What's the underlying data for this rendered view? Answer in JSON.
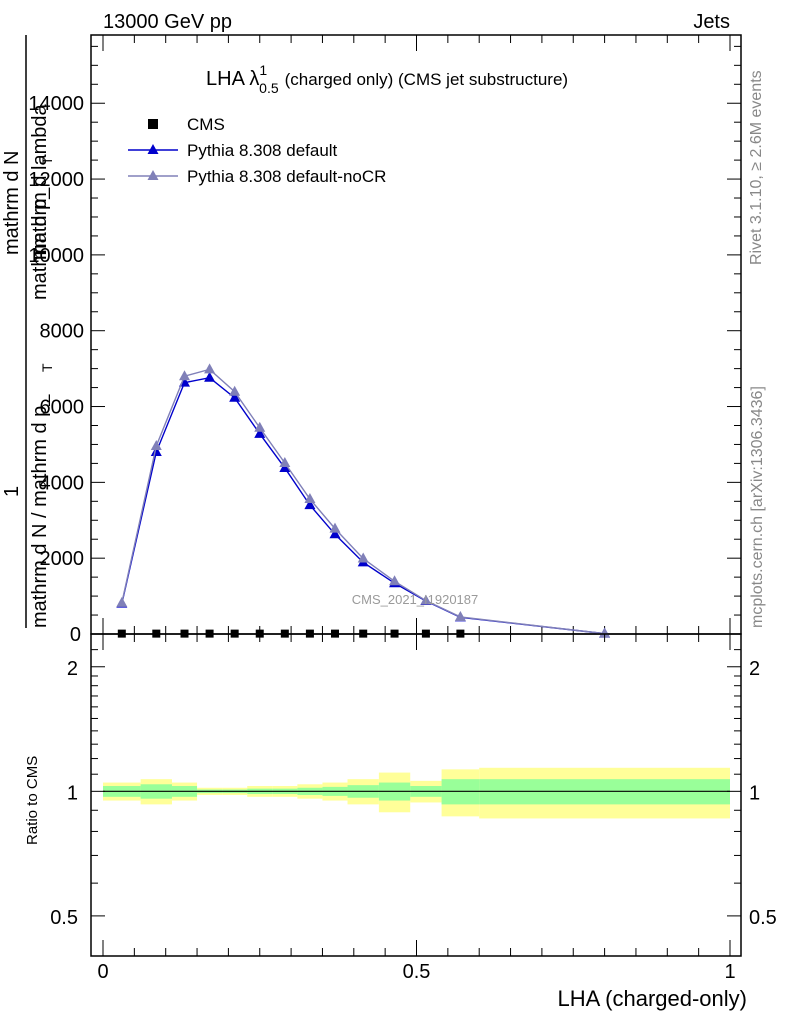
{
  "header": {
    "left": "13000 GeV pp",
    "right": "Jets"
  },
  "side_labels": {
    "rivet": "Rivet 3.1.10, ≥ 2.6M events",
    "mcplots": "mcplots.cern.ch [arXiv:1306.3436]"
  },
  "watermark": "CMS_2021_I1920187",
  "chart_data": [
    {
      "type": "line",
      "title": "LHA λ",
      "title_sup": "1",
      "title_sub": "0.5",
      "title_rest": "(charged only) (CMS jet substructure)",
      "ylabel_parts": [
        "mathrm d",
        "mathrm d p_",
        "T",
        "mathrm d lambda"
      ],
      "ylabel_mid": "1",
      "ylabel_extra": "mathrm d N / mathrm d p_",
      "ylabel_extra2": "mathrm d N",
      "ylabel_extra3": "T",
      "xlim": [
        0,
        1
      ],
      "ylim": [
        0,
        15800
      ],
      "yticks": [
        2000,
        4000,
        6000,
        8000,
        10000,
        12000,
        14000
      ],
      "ytick_labels": [
        "2000",
        "4000",
        "6000",
        "8000",
        "10000",
        "12000",
        "14000"
      ],
      "bottom_tick_label": "0",
      "legend_position": "top-left",
      "series": [
        {
          "name": "CMS",
          "color": "#000000",
          "marker": "square",
          "x": [
            0.03,
            0.085,
            0.13,
            0.17,
            0.21,
            0.25,
            0.29,
            0.33,
            0.37,
            0.415,
            0.465,
            0.515,
            0.57
          ],
          "y": [
            10,
            10,
            10,
            10,
            10,
            10,
            10,
            10,
            10,
            10,
            10,
            10,
            10
          ]
        },
        {
          "name": "Pythia 8.308 default",
          "color": "#0000cc",
          "marker": "triangle",
          "x": [
            0.03,
            0.085,
            0.13,
            0.17,
            0.21,
            0.25,
            0.29,
            0.33,
            0.37,
            0.415,
            0.465,
            0.515,
            0.57,
            0.8
          ],
          "y": [
            800,
            4800,
            6630,
            6760,
            6230,
            5280,
            4380,
            3400,
            2630,
            1890,
            1340,
            870,
            440,
            10
          ]
        },
        {
          "name": "Pythia 8.308 default-noCR",
          "color": "#8080b8",
          "marker": "triangle",
          "x": [
            0.03,
            0.085,
            0.13,
            0.17,
            0.21,
            0.25,
            0.29,
            0.33,
            0.37,
            0.415,
            0.465,
            0.515,
            0.57,
            0.8
          ],
          "y": [
            820,
            4960,
            6800,
            6980,
            6390,
            5440,
            4510,
            3560,
            2780,
            1990,
            1390,
            880,
            450,
            10
          ]
        }
      ]
    },
    {
      "type": "area",
      "ylabel": "Ratio to CMS",
      "xlabel": "LHA (charged-only)",
      "xlim": [
        0,
        1
      ],
      "ylim": [
        0.4,
        2.4
      ],
      "yticks": [
        0.5,
        1,
        2
      ],
      "ytick_labels": [
        "0.5",
        "1",
        "2"
      ],
      "xticks": [
        0,
        0.5,
        1
      ],
      "xtick_labels": [
        "0",
        "0.5",
        "1"
      ],
      "reference_line": 1,
      "colors": {
        "inner": "#99ff99",
        "outer": "#ffff99"
      },
      "bins": [
        {
          "lo": 0.0,
          "hi": 0.06,
          "inner": [
            0.97,
            1.03
          ],
          "outer": [
            0.95,
            1.05
          ]
        },
        {
          "lo": 0.06,
          "hi": 0.11,
          "inner": [
            0.96,
            1.04
          ],
          "outer": [
            0.93,
            1.07
          ]
        },
        {
          "lo": 0.11,
          "hi": 0.15,
          "inner": [
            0.97,
            1.03
          ],
          "outer": [
            0.95,
            1.05
          ]
        },
        {
          "lo": 0.15,
          "hi": 0.19,
          "inner": [
            0.99,
            1.01
          ],
          "outer": [
            0.98,
            1.02
          ]
        },
        {
          "lo": 0.19,
          "hi": 0.23,
          "inner": [
            0.99,
            1.01
          ],
          "outer": [
            0.98,
            1.02
          ]
        },
        {
          "lo": 0.23,
          "hi": 0.27,
          "inner": [
            0.985,
            1.015
          ],
          "outer": [
            0.97,
            1.03
          ]
        },
        {
          "lo": 0.27,
          "hi": 0.31,
          "inner": [
            0.985,
            1.015
          ],
          "outer": [
            0.97,
            1.03
          ]
        },
        {
          "lo": 0.31,
          "hi": 0.35,
          "inner": [
            0.98,
            1.02
          ],
          "outer": [
            0.96,
            1.04
          ]
        },
        {
          "lo": 0.35,
          "hi": 0.39,
          "inner": [
            0.975,
            1.025
          ],
          "outer": [
            0.95,
            1.05
          ]
        },
        {
          "lo": 0.39,
          "hi": 0.44,
          "inner": [
            0.965,
            1.035
          ],
          "outer": [
            0.93,
            1.07
          ]
        },
        {
          "lo": 0.44,
          "hi": 0.49,
          "inner": [
            0.95,
            1.05
          ],
          "outer": [
            0.89,
            1.11
          ]
        },
        {
          "lo": 0.49,
          "hi": 0.54,
          "inner": [
            0.97,
            1.03
          ],
          "outer": [
            0.94,
            1.06
          ]
        },
        {
          "lo": 0.54,
          "hi": 0.6,
          "inner": [
            0.93,
            1.07
          ],
          "outer": [
            0.87,
            1.13
          ]
        },
        {
          "lo": 0.6,
          "hi": 1.0,
          "inner": [
            0.93,
            1.07
          ],
          "outer": [
            0.86,
            1.14
          ]
        }
      ]
    }
  ]
}
